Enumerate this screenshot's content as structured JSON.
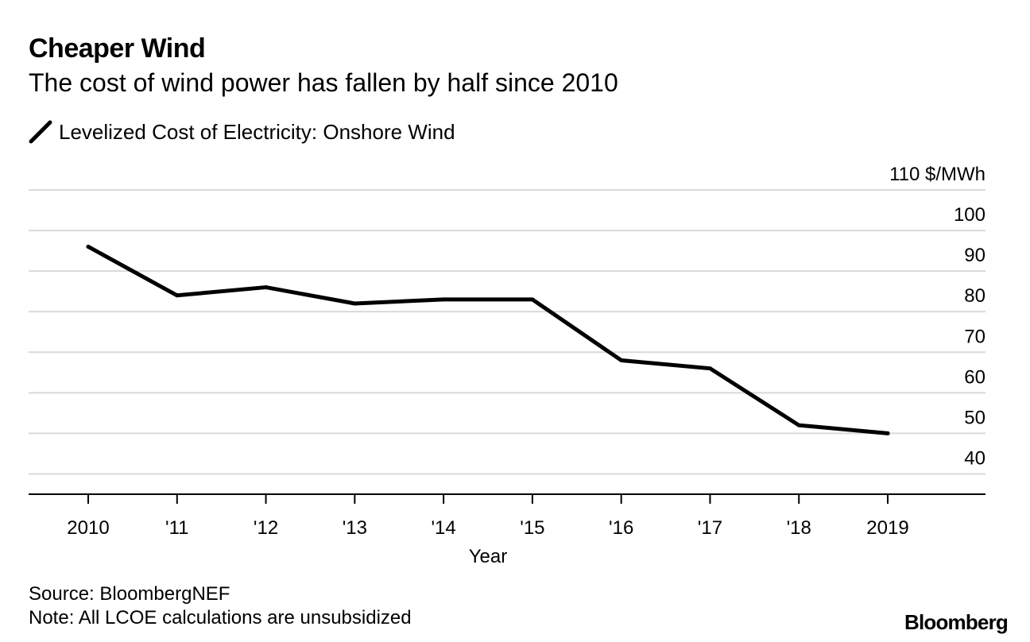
{
  "chart_data": {
    "type": "line",
    "title": "Cheaper Wind",
    "subtitle": "The cost of wind power has fallen by half since 2010",
    "legend": [
      "Levelized Cost of Electricity: Onshore Wind"
    ],
    "legend_position": "top-left",
    "categories": [
      "2010",
      "'11",
      "'12",
      "'13",
      "'14",
      "'15",
      "'16",
      "'17",
      "'18",
      "2019"
    ],
    "series": [
      {
        "name": "Levelized Cost of Electricity: Onshore Wind",
        "values": [
          96,
          84,
          86,
          82,
          83,
          83,
          68,
          66,
          52,
          50
        ]
      }
    ],
    "xlabel": "Year",
    "ylabel": "",
    "y_unit_label": "110 $/MWh",
    "y_ticks": [
      110,
      100,
      90,
      80,
      70,
      60,
      50,
      40
    ],
    "y_tick_labels": [
      "110 $/MWh",
      "100",
      "90",
      "80",
      "70",
      "60",
      "50",
      "40"
    ],
    "ylim": [
      35,
      110
    ],
    "grid": true,
    "line_color": "#000000",
    "grid_color": "#d9d9d9"
  },
  "footer": {
    "source": "Source: BloombergNEF",
    "note": "Note: All LCOE calculations are unsubsidized",
    "brand": "Bloomberg"
  }
}
